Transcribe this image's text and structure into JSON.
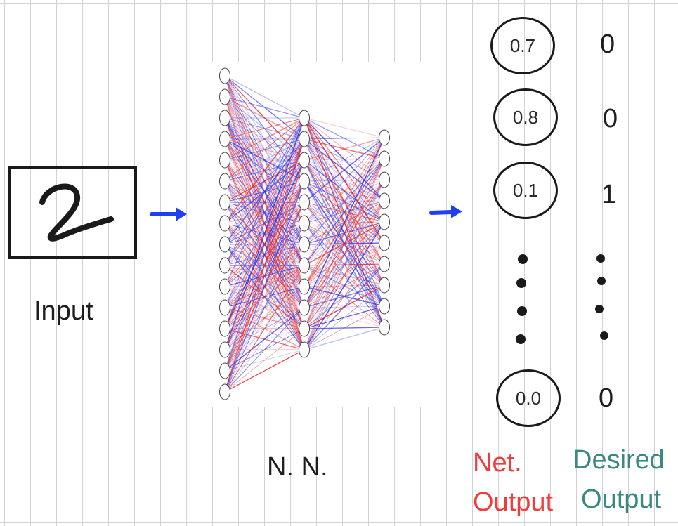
{
  "input": {
    "label": "Input",
    "digit": "2"
  },
  "network": {
    "label": "N. N.",
    "layer_sizes": [
      16,
      12,
      10
    ],
    "colors": {
      "positive": "#e8262b",
      "negative": "#2b32e8"
    }
  },
  "outputs": [
    {
      "net": "0.7",
      "desired": "0"
    },
    {
      "net": "0.8",
      "desired": "0"
    },
    {
      "net": "0.1",
      "desired": "1"
    },
    {
      "net": "0.0",
      "desired": "0"
    }
  ],
  "legend": {
    "net_line1": "Net.",
    "net_line2": "Output",
    "desired_line1": "Desired",
    "desired_line2": "Output"
  },
  "colors": {
    "arrow": "#1f3ff0",
    "net_output_label": "#f03c3c",
    "desired_output_label": "#3a8a80"
  }
}
